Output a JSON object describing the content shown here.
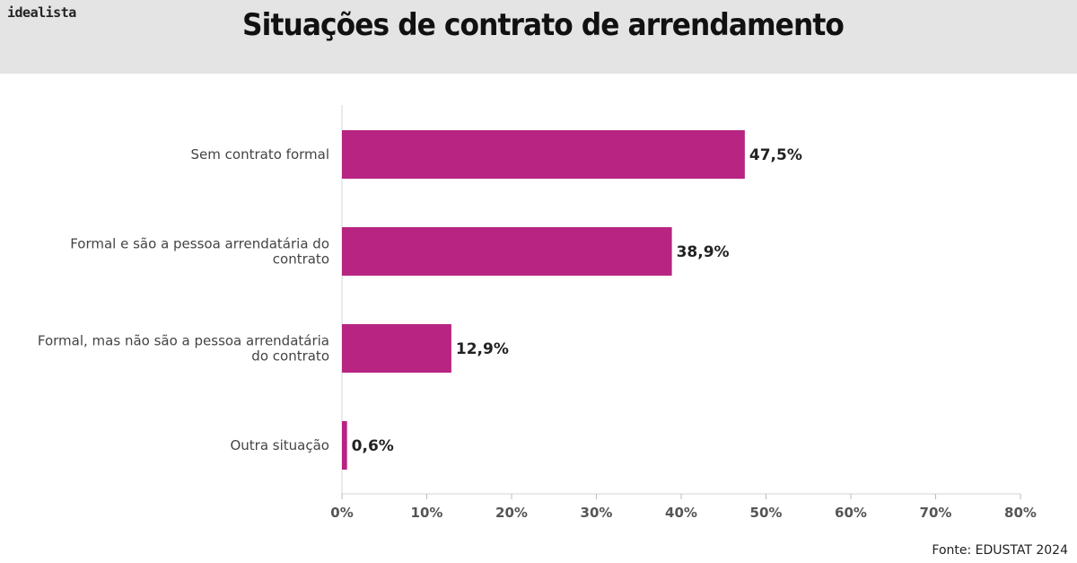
{
  "header": {
    "logo": "idealista",
    "title": "Situações de contrato de arrendamento"
  },
  "source": "Fonte: EDUSTAT 2024",
  "colors": {
    "bar": "#b82481",
    "header_bg": "#e4e4e4"
  },
  "chart_data": {
    "type": "bar",
    "orientation": "horizontal",
    "title": "Situações de contrato de arrendamento",
    "categories": [
      [
        "Sem contrato formal"
      ],
      [
        "Formal e são a pessoa arrendatária do",
        "contrato"
      ],
      [
        "Formal, mas não são a pessoa arrendatária",
        "do contrato"
      ],
      [
        "Outra situação"
      ]
    ],
    "values": [
      47.5,
      38.9,
      12.9,
      0.6
    ],
    "value_labels": [
      "47,5%",
      "38,9%",
      "12,9%",
      "0,6%"
    ],
    "xlim": [
      0,
      80
    ],
    "ticks": [
      0,
      10,
      20,
      30,
      40,
      50,
      60,
      70,
      80
    ],
    "tick_labels": [
      "0%",
      "10%",
      "20%",
      "30%",
      "40%",
      "50%",
      "60%",
      "70%",
      "80%"
    ],
    "grid": false
  }
}
